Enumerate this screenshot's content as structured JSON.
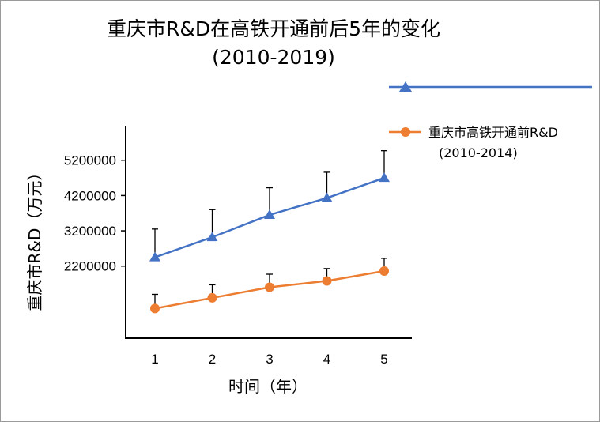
{
  "chart_data": {
    "type": "line",
    "title_line1": "重庆市R&D在高铁开通前后5年的变化",
    "title_line2": "(2010-2019)",
    "xlabel": "时间（年）",
    "ylabel": "重庆市R&D（万元）",
    "x": [
      1,
      2,
      3,
      4,
      5
    ],
    "xticks": [
      "1",
      "2",
      "3",
      "4",
      "5"
    ],
    "yticks": [
      "2200000",
      "3200000",
      "4200000",
      "5200000"
    ],
    "ylim": [
      0,
      5900000
    ],
    "series": [
      {
        "name": "",
        "color": "#4472C4",
        "marker": "triangle",
        "values": [
          2450000,
          3020000,
          3650000,
          4130000,
          4700000
        ],
        "errors": [
          800000,
          780000,
          770000,
          730000,
          770000
        ]
      },
      {
        "name": "重庆市高铁开通前R&D(2010-2014)",
        "name_line1": "重庆市高铁开通前R&D",
        "name_line2": "(2010-2014)",
        "color": "#ED7D31",
        "marker": "circle",
        "values": [
          1000000,
          1300000,
          1600000,
          1780000,
          2060000
        ],
        "errors": [
          400000,
          370000,
          370000,
          350000,
          360000
        ]
      }
    ],
    "grid": false,
    "legend_position": "right",
    "error_bar_color": "#000000"
  }
}
